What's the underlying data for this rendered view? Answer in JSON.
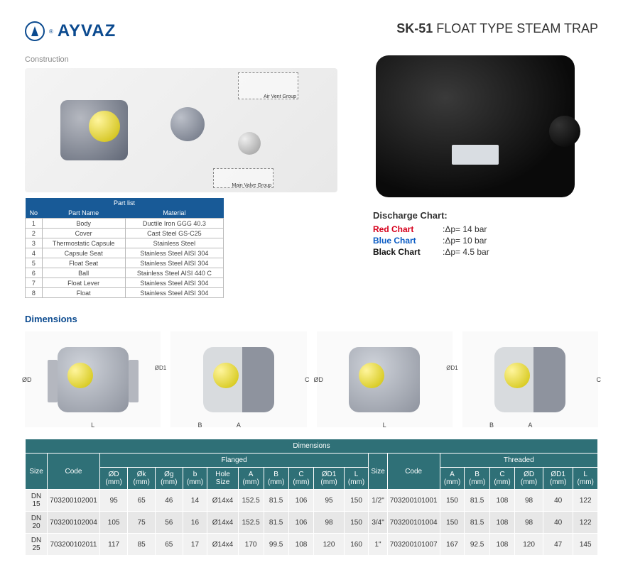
{
  "brand": {
    "name": "AYVAZ"
  },
  "product": {
    "code": "SK-51",
    "name": "FLOAT TYPE STEAM TRAP"
  },
  "labels": {
    "construction": "Construction",
    "dimensions": "Dimensions",
    "partlist_header": "Part list",
    "air_vent_group": "Air Vent Group",
    "main_valve_group": "Main Valve Group"
  },
  "partlist": {
    "cols": [
      "No",
      "Part Name",
      "Material"
    ],
    "rows": [
      [
        "1",
        "Body",
        "Ductile Iron GGG 40.3"
      ],
      [
        "2",
        "Cover",
        "Cast Steel GS-C25"
      ],
      [
        "3",
        "Thermostatic Capsule",
        "Stainless Steel"
      ],
      [
        "4",
        "Capsule Seat",
        "Stainless Steel AISI 304"
      ],
      [
        "5",
        "Float Seat",
        "Stainless Steel AISI 304"
      ],
      [
        "6",
        "Ball",
        "Stainless Steel AISI 440 C"
      ],
      [
        "7",
        "Float Lever",
        "Stainless Steel AISI 304"
      ],
      [
        "8",
        "Float",
        "Stainless Steel AISI 304"
      ]
    ]
  },
  "discharge": {
    "title": "Discharge Chart:",
    "rows": [
      {
        "label": "Red Chart",
        "color_class": "dc-red",
        "value": ":Δp= 14 bar"
      },
      {
        "label": "Blue Chart",
        "color_class": "dc-blue",
        "value": ":Δp= 10 bar"
      },
      {
        "label": "Black Chart",
        "color_class": "dc-black",
        "value": ":Δp= 4.5 bar"
      }
    ]
  },
  "dimtable": {
    "title": "Dimensions",
    "group_flanged": "Flanged",
    "group_threaded": "Threaded",
    "head_flanged": [
      "Size",
      "Code",
      "ØD (mm)",
      "Øk (mm)",
      "Øg (mm)",
      "b (mm)",
      "Hole Size",
      "A (mm)",
      "B (mm)",
      "C (mm)",
      "ØD1 (mm)",
      "L (mm)"
    ],
    "head_threaded": [
      "Size",
      "Code",
      "A (mm)",
      "B (mm)",
      "C (mm)",
      "ØD (mm)",
      "ØD1 (mm)",
      "L (mm)"
    ],
    "rows": [
      {
        "f": [
          "DN 15",
          "703200102001",
          "95",
          "65",
          "46",
          "14",
          "Ø14x4",
          "152.5",
          "81.5",
          "106",
          "95",
          "150"
        ],
        "t": [
          "1/2\"",
          "703200101001",
          "150",
          "81.5",
          "108",
          "98",
          "40",
          "122"
        ]
      },
      {
        "f": [
          "DN 20",
          "703200102004",
          "105",
          "75",
          "56",
          "16",
          "Ø14x4",
          "152.5",
          "81.5",
          "106",
          "98",
          "150"
        ],
        "t": [
          "3/4\"",
          "703200101004",
          "150",
          "81.5",
          "108",
          "98",
          "40",
          "122"
        ]
      },
      {
        "f": [
          "DN 25",
          "703200102011",
          "117",
          "85",
          "65",
          "17",
          "Ø14x4",
          "170",
          "99.5",
          "108",
          "120",
          "160"
        ],
        "t": [
          "1\"",
          "703200101007",
          "167",
          "92.5",
          "108",
          "120",
          "47",
          "145"
        ]
      }
    ]
  },
  "colors": {
    "brand": "#0b4a8f",
    "table_header": "#2f7077",
    "partlist_header": "#185a97"
  }
}
